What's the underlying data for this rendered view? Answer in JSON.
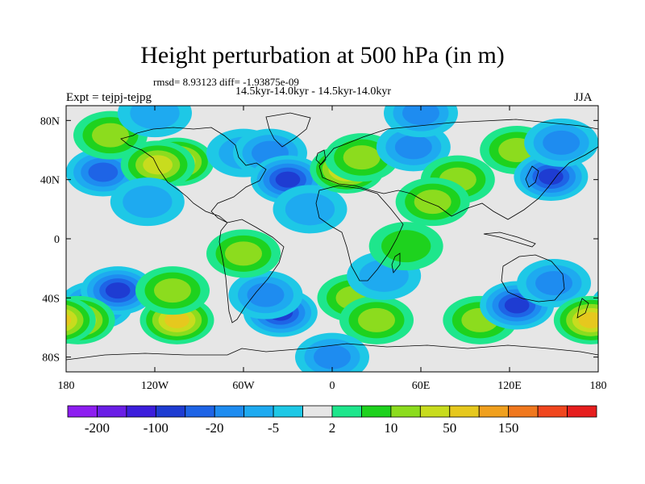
{
  "header": {
    "title": "Height perturbation at 500 hPa (in m)",
    "stats": "rmsd= 8.93123 diff= -1.93875e-09",
    "subtitle": "14.5kyr-14.0kyr - 14.5kyr-14.0kyr",
    "left_label": "Expt = tejpj-tejpg",
    "right_label": "JJA"
  },
  "chart_data": {
    "type": "heatmap",
    "title": "Height perturbation at 500 hPa (in m)",
    "projection": "cylindrical-equidistant",
    "x_range": [
      -180,
      180
    ],
    "y_range": [
      -90,
      90
    ],
    "x_ticks": [
      {
        "value": -180,
        "label": "180"
      },
      {
        "value": -120,
        "label": "120W"
      },
      {
        "value": -60,
        "label": "60W"
      },
      {
        "value": 0,
        "label": "0"
      },
      {
        "value": 60,
        "label": "60E"
      },
      {
        "value": 120,
        "label": "120E"
      },
      {
        "value": 180,
        "label": "180"
      }
    ],
    "y_ticks": [
      {
        "value": 80,
        "label": "80N"
      },
      {
        "value": 40,
        "label": "40N"
      },
      {
        "value": 0,
        "label": "0"
      },
      {
        "value": -40,
        "label": "40S"
      },
      {
        "value": -80,
        "label": "80S"
      }
    ],
    "colorbar": {
      "colors": [
        "#8d1ef0",
        "#6a1ee6",
        "#3c1edc",
        "#1e3cd2",
        "#1e64e6",
        "#1e8cf0",
        "#1eaaf0",
        "#1ec8e6",
        "#e6e6e6",
        "#1ee68c",
        "#1ed21e",
        "#8cdc1e",
        "#c8dc1e",
        "#e6c81e",
        "#f0a01e",
        "#f0781e",
        "#f0461e",
        "#e61e1e"
      ],
      "tick_labels": [
        {
          "after_index": 0,
          "label": "-200"
        },
        {
          "after_index": 2,
          "label": "-100"
        },
        {
          "after_index": 4,
          "label": "-20"
        },
        {
          "after_index": 6,
          "label": "-5"
        },
        {
          "after_index": 8,
          "label": "2"
        },
        {
          "after_index": 10,
          "label": "10"
        },
        {
          "after_index": 12,
          "label": "50"
        },
        {
          "after_index": 14,
          "label": "150"
        }
      ]
    },
    "features": [
      {
        "lon": -155,
        "lat": 45,
        "level": 4
      },
      {
        "lon": -150,
        "lat": 70,
        "level": 11
      },
      {
        "lon": -105,
        "lat": 52,
        "level": 13
      },
      {
        "lon": -118,
        "lat": 50,
        "level": 12
      },
      {
        "lon": -125,
        "lat": 25,
        "level": 6
      },
      {
        "lon": -60,
        "lat": 58,
        "level": 6
      },
      {
        "lon": -42,
        "lat": 58,
        "level": 5
      },
      {
        "lon": -30,
        "lat": 40,
        "level": 3
      },
      {
        "lon": -15,
        "lat": 20,
        "level": 6
      },
      {
        "lon": 10,
        "lat": 47,
        "level": 13
      },
      {
        "lon": 20,
        "lat": 55,
        "level": 11
      },
      {
        "lon": 55,
        "lat": 62,
        "level": 5
      },
      {
        "lon": 85,
        "lat": 40,
        "level": 11
      },
      {
        "lon": 68,
        "lat": 25,
        "level": 11
      },
      {
        "lon": 125,
        "lat": 60,
        "level": 11
      },
      {
        "lon": 148,
        "lat": 42,
        "level": 3
      },
      {
        "lon": 155,
        "lat": 65,
        "level": 5
      },
      {
        "lon": -160,
        "lat": -45,
        "level": 4
      },
      {
        "lon": -145,
        "lat": -35,
        "level": 3
      },
      {
        "lon": -172,
        "lat": -55,
        "level": 13
      },
      {
        "lon": -105,
        "lat": -55,
        "level": 13
      },
      {
        "lon": -108,
        "lat": -35,
        "level": 11
      },
      {
        "lon": -35,
        "lat": -50,
        "level": 3
      },
      {
        "lon": -45,
        "lat": -38,
        "level": 5
      },
      {
        "lon": 15,
        "lat": -40,
        "level": 11
      },
      {
        "lon": 30,
        "lat": -55,
        "level": 11
      },
      {
        "lon": 35,
        "lat": -25,
        "level": 6
      },
      {
        "lon": 100,
        "lat": -55,
        "level": 11
      },
      {
        "lon": 125,
        "lat": -45,
        "level": 3
      },
      {
        "lon": 150,
        "lat": -30,
        "level": 5
      },
      {
        "lon": 175,
        "lat": -55,
        "level": 13
      },
      {
        "lon": -60,
        "lat": -10,
        "level": 11
      },
      {
        "lon": 50,
        "lat": -5,
        "level": 10
      },
      {
        "lon": 0,
        "lat": -80,
        "level": 5
      },
      {
        "lon": 60,
        "lat": 85,
        "level": 5
      },
      {
        "lon": -120,
        "lat": 85,
        "level": 6
      }
    ]
  }
}
